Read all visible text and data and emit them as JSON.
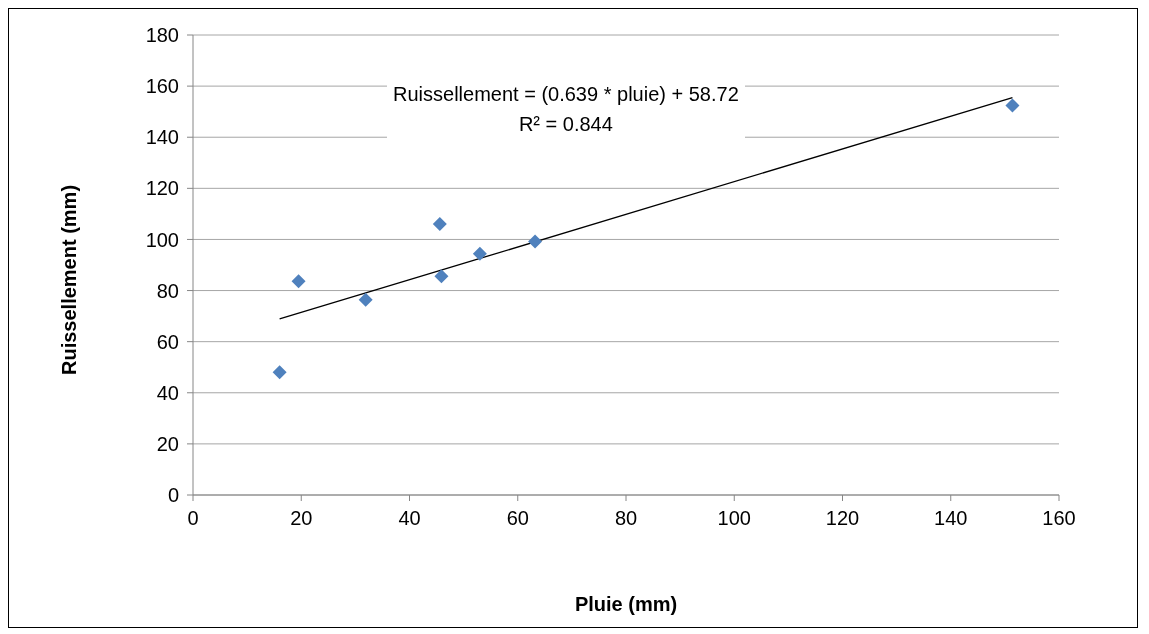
{
  "chart_data": {
    "type": "scatter",
    "xlabel": "Pluie (mm)",
    "ylabel": "Ruissellement (mm)",
    "annotations": [
      "Ruissellement = (0.639 * pluie) + 58.72",
      "R² = 0.844"
    ],
    "xlim": [
      0,
      160
    ],
    "xticks": [
      0,
      20,
      40,
      60,
      80,
      100,
      120,
      140,
      160
    ],
    "ylim": [
      0,
      180
    ],
    "yticks": [
      0,
      20,
      40,
      60,
      80,
      100,
      120,
      140,
      160,
      180
    ],
    "grid": "y",
    "marker": "diamond",
    "legend": false,
    "series": [
      {
        "color": "#4f81bd",
        "x": [
          16.0,
          19.5,
          31.9,
          45.6,
          45.9,
          53.0,
          63.2,
          151.4
        ],
        "values": [
          48,
          83.6,
          76.4,
          106,
          85.6,
          94.4,
          99.2,
          152.4
        ]
      },
      {
        "type": "line",
        "color": "#000000",
        "marker": "none",
        "x": [
          16.0,
          151.4
        ],
        "values": [
          68.9,
          155.5
        ]
      }
    ]
  }
}
